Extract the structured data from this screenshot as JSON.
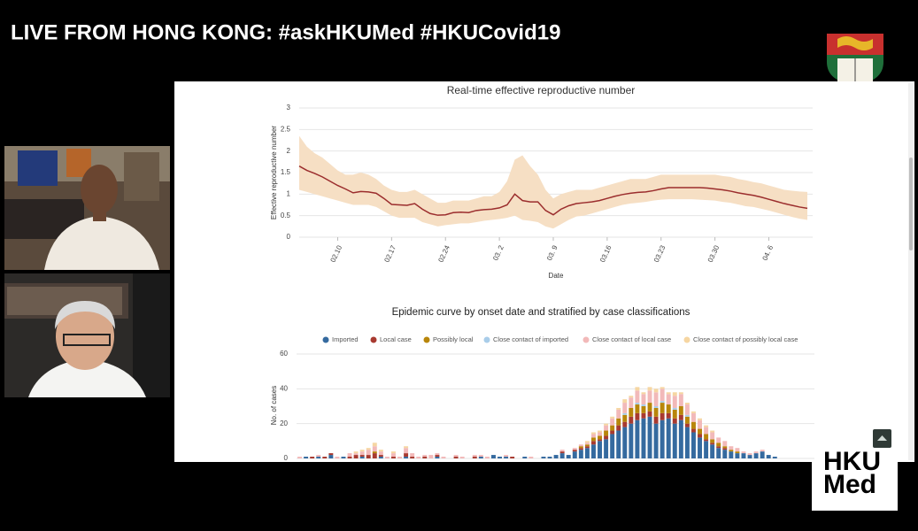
{
  "header": {
    "title": "LIVE FROM HONG KONG: #askHKUMed #HKUCovid19"
  },
  "logo": {
    "lines": [
      "HKU",
      "Med"
    ]
  },
  "chart_data": [
    {
      "type": "line",
      "title": "Real-time effective reproductive number",
      "y_label": "Effective reproductive number",
      "x_label": "Date",
      "color": "#9b2d2d",
      "band_color": "#f6dfc4",
      "categories": [
        null,
        null,
        null,
        null,
        null,
        "02.10",
        null,
        null,
        null,
        null,
        null,
        null,
        "02.17",
        null,
        null,
        null,
        null,
        null,
        null,
        "02.24",
        null,
        null,
        null,
        null,
        null,
        null,
        "03. 2",
        null,
        null,
        null,
        null,
        null,
        null,
        "03. 9",
        null,
        null,
        null,
        null,
        null,
        null,
        "03.16",
        null,
        null,
        null,
        null,
        null,
        null,
        "03.23",
        null,
        null,
        null,
        null,
        null,
        null,
        "03.30",
        null,
        null,
        null,
        null,
        null,
        null,
        "04. 6",
        null,
        null,
        null,
        null,
        null
      ],
      "values": [
        1.65,
        1.55,
        1.48,
        1.4,
        1.3,
        1.2,
        1.12,
        1.03,
        1.06,
        1.05,
        1.02,
        0.9,
        0.76,
        0.75,
        0.74,
        0.78,
        0.65,
        0.55,
        0.51,
        0.52,
        0.57,
        0.58,
        0.57,
        0.62,
        0.64,
        0.65,
        0.68,
        0.75,
        1.0,
        0.85,
        0.82,
        0.82,
        0.62,
        0.52,
        0.65,
        0.73,
        0.78,
        0.8,
        0.82,
        0.85,
        0.9,
        0.95,
        0.99,
        1.02,
        1.04,
        1.05,
        1.08,
        1.12,
        1.15,
        1.15,
        1.15,
        1.15,
        1.15,
        1.14,
        1.12,
        1.1,
        1.07,
        1.03,
        1.0,
        0.97,
        0.93,
        0.88,
        0.83,
        0.78,
        0.74,
        0.7,
        0.67
      ],
      "upper": [
        2.35,
        2.1,
        1.95,
        1.85,
        1.7,
        1.55,
        1.45,
        1.45,
        1.5,
        1.45,
        1.35,
        1.2,
        1.1,
        1.05,
        1.05,
        1.1,
        1.0,
        0.9,
        0.8,
        0.8,
        0.85,
        0.85,
        0.85,
        0.9,
        0.95,
        0.95,
        1.05,
        1.3,
        1.8,
        1.9,
        1.65,
        1.45,
        1.1,
        0.9,
        1.0,
        1.05,
        1.1,
        1.1,
        1.1,
        1.15,
        1.2,
        1.25,
        1.3,
        1.35,
        1.35,
        1.35,
        1.4,
        1.45,
        1.45,
        1.45,
        1.45,
        1.45,
        1.45,
        1.45,
        1.45,
        1.42,
        1.4,
        1.35,
        1.32,
        1.28,
        1.25,
        1.2,
        1.15,
        1.1,
        1.08,
        1.06,
        1.05
      ],
      "lower": [
        1.1,
        1.05,
        1.0,
        0.95,
        0.9,
        0.85,
        0.8,
        0.75,
        0.75,
        0.75,
        0.7,
        0.6,
        0.5,
        0.45,
        0.45,
        0.45,
        0.35,
        0.3,
        0.25,
        0.28,
        0.3,
        0.32,
        0.32,
        0.35,
        0.38,
        0.4,
        0.42,
        0.45,
        0.5,
        0.4,
        0.38,
        0.35,
        0.25,
        0.2,
        0.3,
        0.4,
        0.48,
        0.5,
        0.55,
        0.6,
        0.65,
        0.7,
        0.75,
        0.78,
        0.8,
        0.82,
        0.85,
        0.87,
        0.88,
        0.88,
        0.88,
        0.88,
        0.87,
        0.86,
        0.85,
        0.82,
        0.8,
        0.76,
        0.72,
        0.7,
        0.66,
        0.62,
        0.57,
        0.52,
        0.47,
        0.43,
        0.4
      ],
      "ylim": [
        0,
        3
      ],
      "yticks": [
        0,
        0.5,
        1,
        1.5,
        2,
        2.5,
        3
      ],
      "grid": true
    },
    {
      "type": "stacked_bar",
      "title": "Epidemic curve by onset date and stratified by case classifications",
      "y_label": "No. of cases",
      "ylim": [
        0,
        60
      ],
      "yticks": [
        0,
        20,
        40,
        60
      ],
      "grid": true,
      "legend": "top",
      "series": [
        {
          "name": "Imported",
          "color": "#356a9f",
          "values": [
            0,
            1,
            0,
            1,
            0,
            2,
            0,
            1,
            0,
            0,
            1,
            0,
            0,
            1,
            0,
            0,
            0,
            1,
            0,
            0,
            0,
            0,
            1,
            0,
            0,
            0,
            0,
            0,
            0,
            1,
            0,
            2,
            1,
            1,
            0,
            0,
            1,
            0,
            0,
            1,
            1,
            2,
            3,
            2,
            4,
            5,
            6,
            8,
            10,
            11,
            14,
            16,
            18,
            20,
            22,
            23,
            24,
            20,
            22,
            23,
            20,
            22,
            18,
            15,
            12,
            10,
            8,
            6,
            5,
            4,
            3,
            3,
            2,
            3,
            4,
            2,
            1,
            0,
            0,
            0
          ]
        },
        {
          "name": "Local case",
          "color": "#a83a30",
          "values": [
            0,
            0,
            1,
            0,
            1,
            1,
            0,
            0,
            1,
            2,
            1,
            2,
            3,
            1,
            0,
            1,
            0,
            2,
            1,
            0,
            1,
            0,
            1,
            0,
            0,
            1,
            0,
            0,
            1,
            0,
            0,
            0,
            0,
            0,
            1,
            0,
            0,
            0,
            0,
            0,
            0,
            0,
            1,
            0,
            1,
            1,
            1,
            2,
            1,
            2,
            2,
            3,
            3,
            4,
            4,
            3,
            3,
            4,
            4,
            3,
            3,
            3,
            2,
            2,
            2,
            1,
            1,
            1,
            1,
            0,
            0,
            0,
            0,
            0,
            0,
            0,
            0,
            0,
            0,
            0
          ]
        },
        {
          "name": "Possibly local",
          "color": "#b8860b",
          "values": [
            0,
            0,
            0,
            0,
            0,
            0,
            0,
            0,
            0,
            0,
            0,
            0,
            1,
            0,
            0,
            0,
            0,
            0,
            0,
            0,
            0,
            0,
            0,
            0,
            0,
            0,
            0,
            0,
            0,
            0,
            0,
            0,
            0,
            0,
            0,
            0,
            0,
            0,
            0,
            0,
            0,
            0,
            0,
            0,
            0,
            1,
            1,
            2,
            2,
            3,
            3,
            4,
            4,
            5,
            5,
            4,
            5,
            5,
            6,
            5,
            5,
            5,
            4,
            4,
            3,
            3,
            2,
            2,
            1,
            1,
            1,
            0,
            0,
            0,
            0,
            0,
            0,
            0,
            0,
            0
          ]
        },
        {
          "name": "Close contact of imported",
          "color": "#a9cde9",
          "values": [
            0,
            0,
            0,
            0,
            0,
            0,
            0,
            0,
            0,
            0,
            0,
            0,
            0,
            0,
            0,
            0,
            0,
            0,
            0,
            0,
            0,
            0,
            0,
            0,
            0,
            0,
            0,
            0,
            0,
            0,
            0,
            0,
            0,
            0,
            0,
            0,
            0,
            0,
            0,
            0,
            0,
            0,
            0,
            0,
            0,
            0,
            0,
            0,
            0,
            0,
            0,
            0,
            1,
            0,
            1,
            1,
            0,
            1,
            1,
            0,
            1,
            0,
            1,
            0,
            0,
            0,
            0,
            0,
            0,
            0,
            0,
            0,
            0,
            0,
            0,
            0,
            0,
            0,
            0,
            0
          ]
        },
        {
          "name": "Close contact of local case",
          "color": "#f2b9b9",
          "values": [
            1,
            0,
            0,
            1,
            0,
            0,
            1,
            0,
            2,
            1,
            2,
            3,
            3,
            2,
            1,
            2,
            1,
            3,
            2,
            1,
            1,
            2,
            1,
            1,
            0,
            1,
            1,
            0,
            1,
            1,
            1,
            0,
            0,
            1,
            0,
            0,
            0,
            1,
            0,
            0,
            0,
            0,
            1,
            0,
            1,
            1,
            1,
            2,
            2,
            3,
            4,
            5,
            6,
            6,
            7,
            6,
            7,
            8,
            7,
            6,
            7,
            7,
            6,
            5,
            5,
            4,
            4,
            3,
            3,
            2,
            2,
            1,
            1,
            1,
            1,
            0,
            0,
            0,
            0,
            0
          ]
        },
        {
          "name": "Close contact of possibly local case",
          "color": "#f6d6a2",
          "values": [
            0,
            0,
            0,
            0,
            0,
            0,
            0,
            0,
            0,
            1,
            1,
            1,
            2,
            1,
            0,
            1,
            0,
            1,
            0,
            0,
            0,
            0,
            0,
            0,
            0,
            0,
            0,
            0,
            0,
            0,
            0,
            0,
            0,
            0,
            0,
            0,
            0,
            0,
            0,
            0,
            0,
            0,
            0,
            0,
            0,
            0,
            1,
            1,
            1,
            1,
            1,
            1,
            2,
            1,
            2,
            1,
            2,
            2,
            1,
            1,
            2,
            1,
            1,
            1,
            1,
            1,
            1,
            0,
            0,
            0,
            0,
            0,
            0,
            0,
            0,
            0,
            0,
            0,
            0,
            0
          ]
        }
      ]
    }
  ]
}
